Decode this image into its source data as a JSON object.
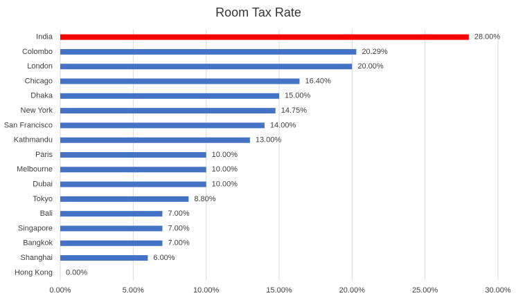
{
  "chart_data": {
    "type": "hbar",
    "title": "Room Tax Rate",
    "categories": [
      "India",
      "Colombo",
      "London",
      "Chicago",
      "Dhaka",
      "New York",
      "San Francisco",
      "Kathmandu",
      "Paris",
      "Melbourne",
      "Dubai",
      "Tokyo",
      "Bali",
      "Singapore",
      "Bangkok",
      "Shanghai",
      "Hong Kong"
    ],
    "values": [
      28,
      20.29,
      20,
      16.4,
      15,
      14.75,
      14,
      13,
      10,
      10,
      10,
      8.8,
      7,
      7,
      7,
      6,
      0
    ],
    "value_labels": [
      "28.00%",
      "20.29%",
      "20.00%",
      "16.40%",
      "15.00%",
      "14.75%",
      "14.00%",
      "13.00%",
      "10.00%",
      "10.00%",
      "10.00%",
      "8.80%",
      "7.00%",
      "7.00%",
      "7.00%",
      "6.00%",
      "0.00%"
    ],
    "colors": [
      "#ff0000",
      "#4472c4",
      "#4472c4",
      "#4472c4",
      "#4472c4",
      "#4472c4",
      "#4472c4",
      "#4472c4",
      "#4472c4",
      "#4472c4",
      "#4472c4",
      "#4472c4",
      "#4472c4",
      "#4472c4",
      "#4472c4",
      "#4472c4",
      "#4472c4"
    ],
    "xlim": [
      0,
      30
    ],
    "xticks": [
      {
        "value": 0,
        "label": "0.00%"
      },
      {
        "value": 5,
        "label": "5.00%"
      },
      {
        "value": 10,
        "label": "10.00%"
      },
      {
        "value": 15,
        "label": "15.00%"
      },
      {
        "value": 20,
        "label": "20.00%"
      },
      {
        "value": 25,
        "label": "25.00%"
      },
      {
        "value": 30,
        "label": "30.00%"
      }
    ],
    "grid": true
  }
}
